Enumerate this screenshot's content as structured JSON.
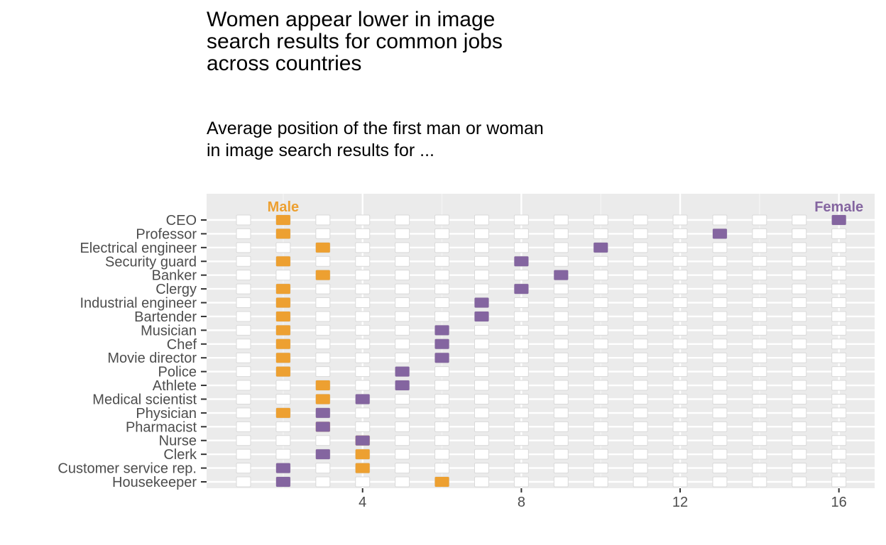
{
  "chart_data": {
    "type": "scatter",
    "title": [
      "Women appear lower in image",
      "search results for common jobs",
      "across countries"
    ],
    "subtitle": [
      "Average position of the first man or woman",
      "in image search results for ..."
    ],
    "xlabel": "",
    "ylabel": "",
    "xlim": [
      0.07,
      16.9
    ],
    "xticks": [
      4,
      8,
      12,
      16
    ],
    "grid": true,
    "positions": [
      1,
      2,
      3,
      4,
      5,
      6,
      7,
      8,
      9,
      10,
      11,
      12,
      13,
      14,
      15,
      16
    ],
    "categories": [
      "CEO",
      "Professor",
      "Electrical engineer",
      "Security guard",
      "Banker",
      "Clergy",
      "Industrial engineer",
      "Bartender",
      "Musician",
      "Chef",
      "Movie director",
      "Police",
      "Athlete",
      "Medical scientist",
      "Physician",
      "Pharmacist",
      "Nurse",
      "Clerk",
      "Customer service rep.",
      "Housekeeper"
    ],
    "series": [
      {
        "name": "Male",
        "color": "#EDA031",
        "values": [
          2,
          2,
          3,
          2,
          3,
          2,
          2,
          2,
          2,
          2,
          2,
          2,
          3,
          3,
          2,
          3,
          4,
          4,
          4,
          6
        ]
      },
      {
        "name": "Female",
        "color": "#8465A0",
        "values": [
          16,
          13,
          10,
          8,
          9,
          8,
          7,
          7,
          6,
          6,
          6,
          5,
          5,
          4,
          3,
          3,
          4,
          3,
          2,
          2
        ]
      }
    ],
    "legend": "inline labels at top-left (Male) and top-right (Female)"
  }
}
